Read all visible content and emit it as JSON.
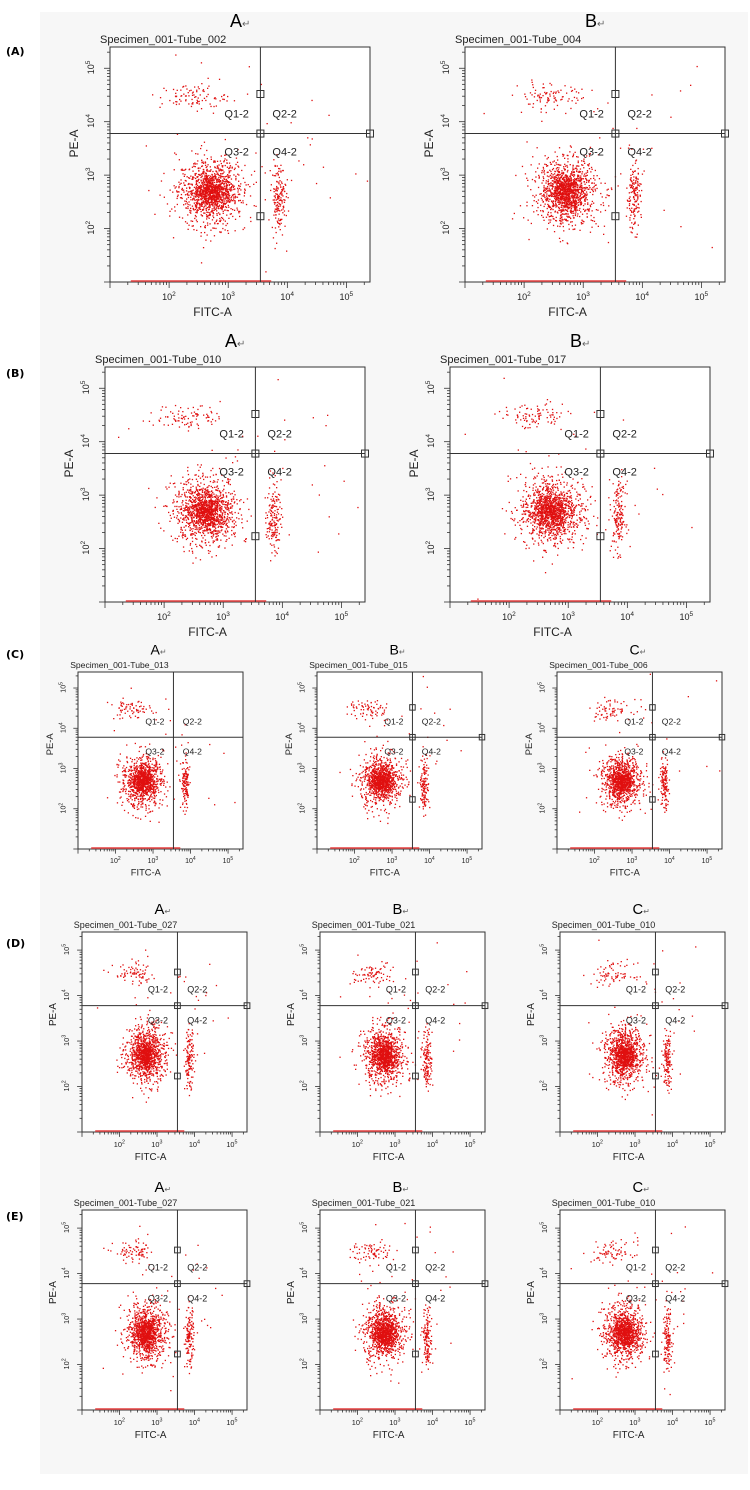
{
  "figure": {
    "rows": [
      {
        "label": "(A)",
        "panels": [
          {
            "letter": "A",
            "tube": "Specimen_001-Tube_002",
            "handles": true
          },
          {
            "letter": "B",
            "tube": "Specimen_001-Tube_004",
            "handles": true
          }
        ]
      },
      {
        "label": "(B)",
        "panels": [
          {
            "letter": "A",
            "tube": "Specimen_001-Tube_010",
            "handles": true
          },
          {
            "letter": "B",
            "tube": "Specimen_001-Tube_017",
            "handles": true
          }
        ]
      },
      {
        "label": "(C)",
        "panels": [
          {
            "letter": "A",
            "tube": "Specimen_001-Tube_013",
            "handles": false
          },
          {
            "letter": "B",
            "tube": "Specimen_001-Tube_015",
            "handles": true
          },
          {
            "letter": "C",
            "tube": "Specimen_001-Tube_006",
            "handles": true
          }
        ]
      },
      {
        "label": "(D)",
        "panels": [
          {
            "letter": "A",
            "tube": "Specimen_001-Tube_027",
            "handles": true
          },
          {
            "letter": "B",
            "tube": "Specimen_001-Tube_021",
            "handles": true
          },
          {
            "letter": "C",
            "tube": "Specimen_001-Tube_010",
            "handles": true
          }
        ]
      },
      {
        "label": "(E)",
        "panels": [
          {
            "letter": "A",
            "tube": "Specimen_001-Tube_027",
            "handles": true
          },
          {
            "letter": "B",
            "tube": "Specimen_001-Tube_021",
            "handles": true
          },
          {
            "letter": "C",
            "tube": "Specimen_001-Tube_010",
            "handles": true
          }
        ]
      }
    ],
    "letter_suffix": "↵",
    "dot_color": "#e01010",
    "line_color": "#333333",
    "background_color": "#f7f7f7"
  },
  "chart_data": {
    "type": "scatter",
    "xlabel": "FITC-A",
    "ylabel": "PE-A",
    "x_scale": "log",
    "y_scale": "log",
    "x_ticks": [
      "10^2",
      "10^3",
      "10^4",
      "10^5"
    ],
    "y_ticks": [
      "10^2",
      "10^3",
      "10^4",
      "10^5"
    ],
    "xlim": [
      10,
      250000
    ],
    "ylim": [
      10,
      250000
    ],
    "gate_x": 3500,
    "gate_y": 6000,
    "quadrants": [
      "Q1-2",
      "Q2-2",
      "Q3-2",
      "Q4-2"
    ],
    "populations": {
      "main_cluster_center": [
        500,
        500
      ],
      "q4_cluster_center": [
        7000,
        400
      ],
      "q1_cluster_center": [
        250,
        30000
      ]
    },
    "grid": false,
    "legend": "none"
  }
}
